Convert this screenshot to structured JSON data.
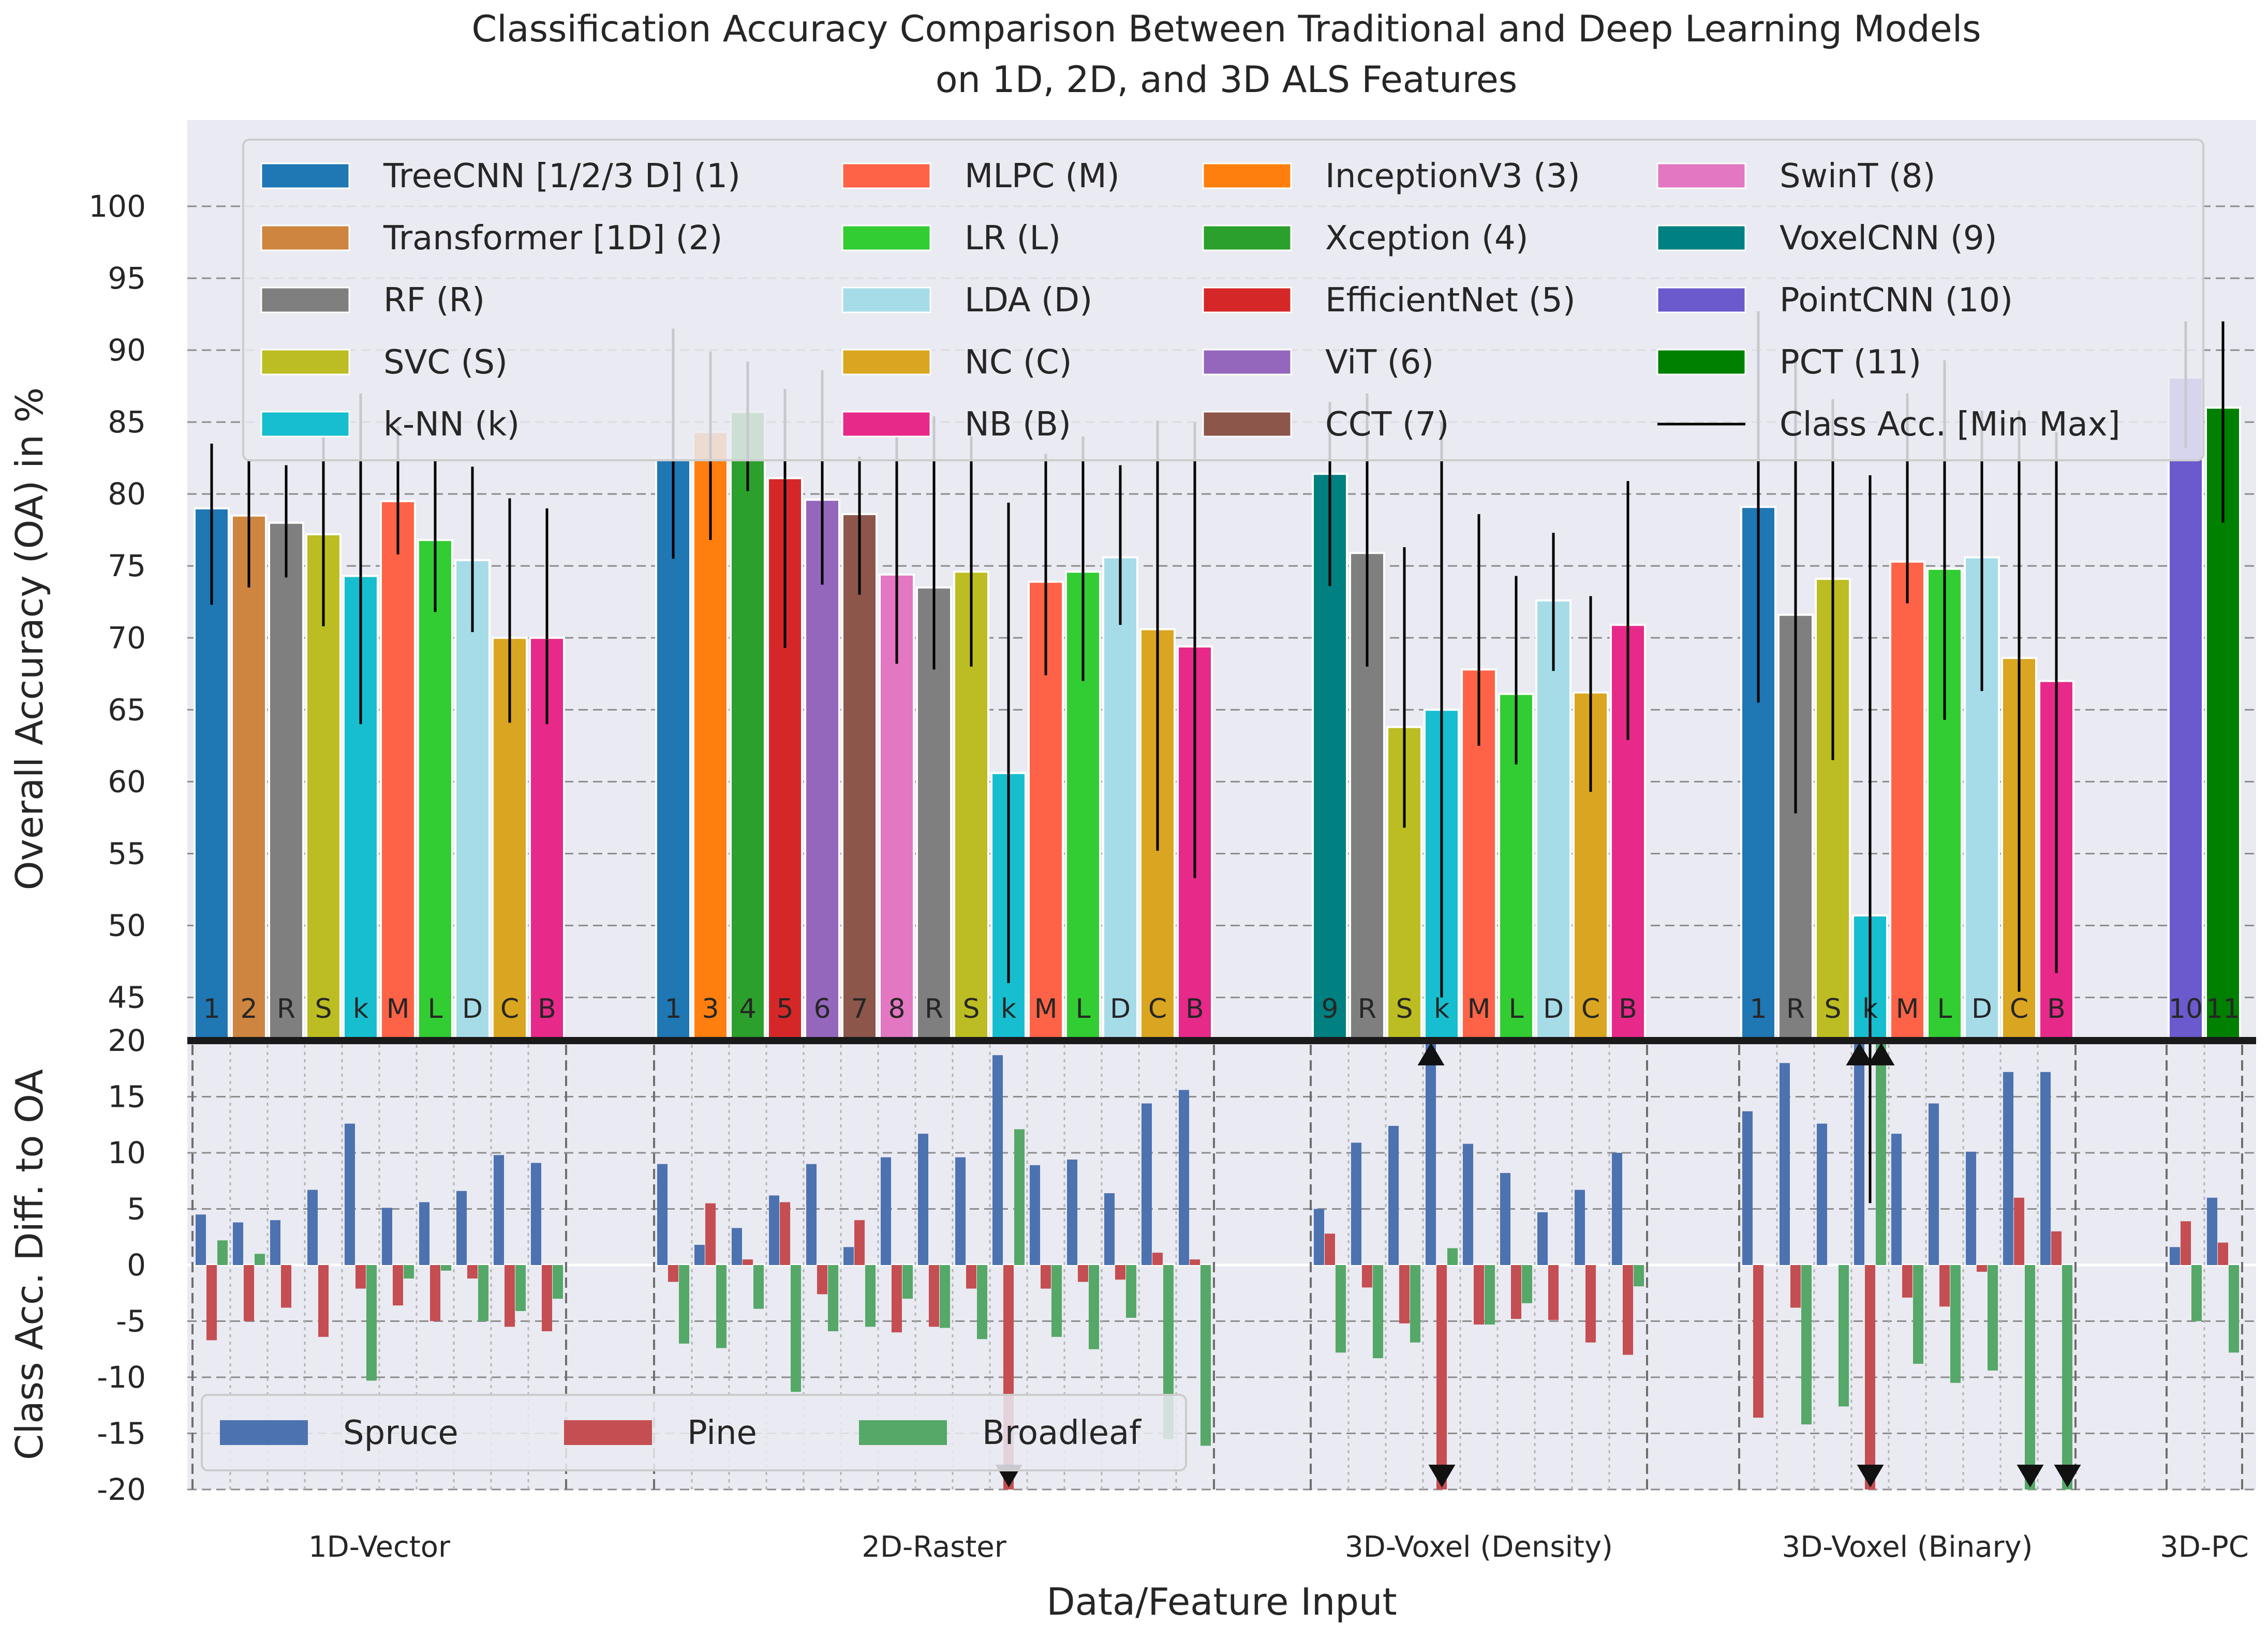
{
  "chart_data": {
    "type": "bar",
    "title": "Classification Accuracy Comparison Between Traditional and Deep Learning Models",
    "subtitle": "on 1D, 2D, and 3D ALS Features",
    "xlabel": "Data/Feature Input",
    "ylabel_top": "Overall Accuracy (OA) in %",
    "ylabel_bottom": "Class Acc. Diff. to OA",
    "ylabel_bottom_color": "#ff0000",
    "top_yticks": [
      45,
      50,
      55,
      60,
      65,
      70,
      75,
      80,
      85,
      90,
      95,
      100
    ],
    "bottom_yticks": [
      -20,
      -15,
      -10,
      -5,
      0,
      5,
      10,
      15,
      20
    ],
    "ylim_top": [
      42,
      106
    ],
    "ylim_bottom": [
      -20,
      20
    ],
    "grid": true,
    "legend_models": [
      {
        "label": "TreeCNN [1/2/3 D] (1)",
        "color": "#1f77b4"
      },
      {
        "label": "Transformer [1D] (2)",
        "color": "#cd853f"
      },
      {
        "label": "RF (R)",
        "color": "#7f7f7f"
      },
      {
        "label": "SVC (S)",
        "color": "#bcbd22"
      },
      {
        "label": "k-NN (k)",
        "color": "#17becf"
      },
      {
        "label": "MLPC (M)",
        "color": "#ff6347"
      },
      {
        "label": "LR (L)",
        "color": "#32cd32"
      },
      {
        "label": "LDA (D)",
        "color": "#a6dce8"
      },
      {
        "label": "NC (C)",
        "color": "#daa520"
      },
      {
        "label": "NB (B)",
        "color": "#e7298a"
      },
      {
        "label": "InceptionV3 (3)",
        "color": "#ff7f0e"
      },
      {
        "label": "Xception (4)",
        "color": "#2ca02c"
      },
      {
        "label": "EfficientNet (5)",
        "color": "#d62728"
      },
      {
        "label": "ViT (6)",
        "color": "#9467bd"
      },
      {
        "label": "CCT (7)",
        "color": "#8c564b"
      },
      {
        "label": "SwinT (8)",
        "color": "#e377c2"
      },
      {
        "label": "VoxelCNN (9)",
        "color": "#008080"
      },
      {
        "label": "PointCNN (10)",
        "color": "#6a5acd"
      },
      {
        "label": "PCT (11)",
        "color": "#008000"
      },
      {
        "label": "Class Acc. [Min Max]",
        "color": "#000000",
        "line": true
      }
    ],
    "legend_classes": [
      {
        "label": "Spruce",
        "color": "#4c72b0"
      },
      {
        "label": "Pine",
        "color": "#c44e52"
      },
      {
        "label": "Broadleaf",
        "color": "#55a868"
      }
    ],
    "groups": [
      {
        "name": "1D-Vector",
        "bars": [
          {
            "code": "1",
            "color": "#1f77b4",
            "oa": 79.0,
            "min": 72.3,
            "max": 83.5,
            "spruce": 4.5,
            "pine": -6.7,
            "broadleaf": 2.2
          },
          {
            "code": "2",
            "color": "#cd853f",
            "oa": 78.5,
            "min": 73.5,
            "max": 82.3,
            "spruce": 3.8,
            "pine": -5.0,
            "broadleaf": 1.0
          },
          {
            "code": "R",
            "color": "#7f7f7f",
            "oa": 78.0,
            "min": 74.2,
            "max": 82.0,
            "spruce": 4.0,
            "pine": -3.8,
            "broadleaf": 0.0
          },
          {
            "code": "S",
            "color": "#bcbd22",
            "oa": 77.2,
            "min": 70.8,
            "max": 84.0,
            "spruce": 6.7,
            "pine": -6.4,
            "broadleaf": 0.0
          },
          {
            "code": "k",
            "color": "#17becf",
            "oa": 74.3,
            "min": 64.0,
            "max": 87.0,
            "spruce": 12.6,
            "pine": -2.1,
            "broadleaf": -10.3
          },
          {
            "code": "M",
            "color": "#ff6347",
            "oa": 79.5,
            "min": 75.8,
            "max": 84.7,
            "spruce": 5.1,
            "pine": -3.6,
            "broadleaf": -1.2
          },
          {
            "code": "L",
            "color": "#32cd32",
            "oa": 76.8,
            "min": 71.8,
            "max": 82.3,
            "spruce": 5.6,
            "pine": -5.0,
            "broadleaf": -0.5
          },
          {
            "code": "D",
            "color": "#a6dce8",
            "oa": 75.4,
            "min": 70.4,
            "max": 81.9,
            "spruce": 6.6,
            "pine": -1.2,
            "broadleaf": -5.0
          },
          {
            "code": "C",
            "color": "#daa520",
            "oa": 70.0,
            "min": 64.1,
            "max": 79.7,
            "spruce": 9.8,
            "pine": -5.5,
            "broadleaf": -4.1
          },
          {
            "code": "B",
            "color": "#e7298a",
            "oa": 70.0,
            "min": 64.0,
            "max": 79.0,
            "spruce": 9.1,
            "pine": -5.9,
            "broadleaf": -3.0
          }
        ]
      },
      {
        "name": "2D-Raster",
        "bars": [
          {
            "code": "1",
            "color": "#1f77b4",
            "oa": 82.5,
            "min": 75.5,
            "max": 91.5,
            "spruce": 9.0,
            "pine": -1.5,
            "broadleaf": -7.0
          },
          {
            "code": "3",
            "color": "#ff7f0e",
            "oa": 84.3,
            "min": 76.8,
            "max": 89.9,
            "spruce": 1.8,
            "pine": 5.5,
            "broadleaf": -7.4
          },
          {
            "code": "4",
            "color": "#2ca02c",
            "oa": 85.7,
            "min": 80.2,
            "max": 89.2,
            "spruce": 3.3,
            "pine": 0.5,
            "broadleaf": -3.9
          },
          {
            "code": "5",
            "color": "#d62728",
            "oa": 81.1,
            "min": 69.3,
            "max": 87.3,
            "spruce": 6.2,
            "pine": 5.6,
            "broadleaf": -11.3
          },
          {
            "code": "6",
            "color": "#9467bd",
            "oa": 79.6,
            "min": 73.7,
            "max": 88.6,
            "spruce": 9.0,
            "pine": -2.6,
            "broadleaf": -5.9
          },
          {
            "code": "7",
            "color": "#8c564b",
            "oa": 78.6,
            "min": 73.0,
            "max": 82.6,
            "spruce": 1.6,
            "pine": 4.0,
            "broadleaf": -5.5
          },
          {
            "code": "8",
            "color": "#e377c2",
            "oa": 74.4,
            "min": 68.2,
            "max": 84.0,
            "spruce": 9.6,
            "pine": -6.0,
            "broadleaf": -3.0
          },
          {
            "code": "R",
            "color": "#7f7f7f",
            "oa": 73.5,
            "min": 67.8,
            "max": 85.4,
            "spruce": 11.7,
            "pine": -5.5,
            "broadleaf": -5.6
          },
          {
            "code": "S",
            "color": "#bcbd22",
            "oa": 74.6,
            "min": 68.0,
            "max": 84.0,
            "spruce": 9.6,
            "pine": -2.1,
            "broadleaf": -6.6
          },
          {
            "code": "k",
            "color": "#17becf",
            "oa": 60.6,
            "min": 46.0,
            "max": 79.4,
            "spruce": 18.7,
            "pine": -20.0,
            "broadleaf": 12.1,
            "pine_clipped": true
          },
          {
            "code": "M",
            "color": "#ff6347",
            "oa": 73.9,
            "min": 67.4,
            "max": 82.8,
            "spruce": 8.9,
            "pine": -2.1,
            "broadleaf": -6.4
          },
          {
            "code": "L",
            "color": "#32cd32",
            "oa": 74.6,
            "min": 67.0,
            "max": 84.0,
            "spruce": 9.4,
            "pine": -1.5,
            "broadleaf": -7.5
          },
          {
            "code": "D",
            "color": "#a6dce8",
            "oa": 75.6,
            "min": 70.9,
            "max": 82.0,
            "spruce": 6.4,
            "pine": -1.3,
            "broadleaf": -4.7
          },
          {
            "code": "C",
            "color": "#daa520",
            "oa": 70.6,
            "min": 55.2,
            "max": 85.1,
            "spruce": 14.4,
            "pine": 1.1,
            "broadleaf": -15.5
          },
          {
            "code": "B",
            "color": "#e7298a",
            "oa": 69.4,
            "min": 53.3,
            "max": 85.0,
            "spruce": 15.6,
            "pine": 0.5,
            "broadleaf": -16.1
          }
        ]
      },
      {
        "name": "3D-Voxel (Density)",
        "bars": [
          {
            "code": "9",
            "color": "#008080",
            "oa": 81.4,
            "min": 73.6,
            "max": 86.4,
            "spruce": 5.0,
            "pine": 2.8,
            "broadleaf": -7.8
          },
          {
            "code": "R",
            "color": "#7f7f7f",
            "oa": 75.9,
            "min": 68.0,
            "max": 87.0,
            "spruce": 10.9,
            "pine": -2.0,
            "broadleaf": -8.3
          },
          {
            "code": "S",
            "color": "#bcbd22",
            "oa": 63.8,
            "min": 56.8,
            "max": 76.3,
            "spruce": 12.4,
            "pine": -5.2,
            "broadleaf": -6.9
          },
          {
            "code": "k",
            "color": "#17becf",
            "oa": 65.0,
            "min": 45.0,
            "max": 85.0,
            "spruce": 20.0,
            "pine": -20.0,
            "broadleaf": 1.5,
            "spruce_clipped": true,
            "pine_clipped": true
          },
          {
            "code": "M",
            "color": "#ff6347",
            "oa": 67.8,
            "min": 62.5,
            "max": 78.6,
            "spruce": 10.8,
            "pine": -5.3,
            "broadleaf": -5.3
          },
          {
            "code": "L",
            "color": "#32cd32",
            "oa": 66.1,
            "min": 61.2,
            "max": 74.3,
            "spruce": 8.2,
            "pine": -4.8,
            "broadleaf": -3.4
          },
          {
            "code": "D",
            "color": "#a6dce8",
            "oa": 72.6,
            "min": 67.7,
            "max": 77.3,
            "spruce": 4.7,
            "pine": -4.9,
            "broadleaf": 0.0
          },
          {
            "code": "C",
            "color": "#daa520",
            "oa": 66.2,
            "min": 59.3,
            "max": 72.9,
            "spruce": 6.7,
            "pine": -6.9,
            "broadleaf": 0.0
          },
          {
            "code": "B",
            "color": "#e7298a",
            "oa": 70.9,
            "min": 62.9,
            "max": 80.9,
            "spruce": 10.0,
            "pine": -8.0,
            "broadleaf": -1.9
          }
        ]
      },
      {
        "name": "3D-Voxel (Binary)",
        "bars": [
          {
            "code": "1",
            "color": "#1f77b4",
            "oa": 79.1,
            "min": 65.5,
            "max": 92.7,
            "spruce": 13.7,
            "pine": -13.6,
            "broadleaf": 0.0
          },
          {
            "code": "R",
            "color": "#7f7f7f",
            "oa": 71.6,
            "min": 57.8,
            "max": 89.7,
            "spruce": 18.0,
            "pine": -3.8,
            "broadleaf": -14.2
          },
          {
            "code": "S",
            "color": "#bcbd22",
            "oa": 74.1,
            "min": 61.5,
            "max": 86.6,
            "spruce": 12.6,
            "pine": 0.0,
            "broadleaf": -12.6
          },
          {
            "code": "k",
            "color": "#17becf",
            "oa": 50.7,
            "min": 30.7,
            "max": 81.3,
            "spruce": 20.0,
            "pine": -20.0,
            "broadleaf": 20.0,
            "spruce_clipped": true,
            "pine_clipped": true,
            "broadleaf_clipped": true
          },
          {
            "code": "M",
            "color": "#ff6347",
            "oa": 75.3,
            "min": 72.4,
            "max": 87.0,
            "spruce": 11.7,
            "pine": -2.9,
            "broadleaf": -8.8
          },
          {
            "code": "L",
            "color": "#32cd32",
            "oa": 74.8,
            "min": 64.3,
            "max": 89.3,
            "spruce": 14.4,
            "pine": -3.7,
            "broadleaf": -10.5
          },
          {
            "code": "D",
            "color": "#a6dce8",
            "oa": 75.6,
            "min": 66.3,
            "max": 85.8,
            "spruce": 10.1,
            "pine": -0.6,
            "broadleaf": -9.4
          },
          {
            "code": "C",
            "color": "#daa520",
            "oa": 68.6,
            "min": 45.4,
            "max": 85.8,
            "spruce": 17.2,
            "pine": 6.0,
            "broadleaf": -20.0,
            "broadleaf_clipped": true
          },
          {
            "code": "B",
            "color": "#e7298a",
            "oa": 67.0,
            "min": 46.7,
            "max": 84.3,
            "spruce": 17.2,
            "pine": 3.0,
            "broadleaf": -20.0,
            "broadleaf_clipped": true
          }
        ]
      },
      {
        "name": "3D-PC",
        "bars": [
          {
            "code": "10",
            "color": "#6a5acd",
            "oa": 88.1,
            "min": 83.2,
            "max": 92.0,
            "spruce": 1.6,
            "pine": 3.9,
            "broadleaf": -5.0
          },
          {
            "code": "11",
            "color": "#008000",
            "oa": 86.0,
            "min": 78.0,
            "max": 92.0,
            "spruce": 6.0,
            "pine": 2.0,
            "broadleaf": -7.8
          }
        ]
      }
    ]
  }
}
